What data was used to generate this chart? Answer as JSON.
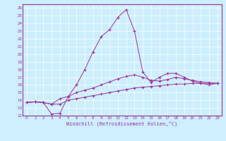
{
  "xlabel": "Windchill (Refroidissement éolien,°C)",
  "bg_color": "#cceeff",
  "line_color": "#993399",
  "xlim": [
    -0.5,
    23.5
  ],
  "ylim": [
    12,
    26.5
  ],
  "xticks": [
    0,
    1,
    2,
    3,
    4,
    5,
    6,
    7,
    8,
    9,
    10,
    11,
    12,
    13,
    14,
    15,
    16,
    17,
    18,
    19,
    20,
    21,
    22,
    23
  ],
  "yticks": [
    12,
    13,
    14,
    15,
    16,
    17,
    18,
    19,
    20,
    21,
    22,
    23,
    24,
    25,
    26
  ],
  "line1_x": [
    0,
    1,
    2,
    3,
    4,
    5,
    6,
    7,
    8,
    9,
    10,
    11,
    12,
    13,
    14,
    15,
    16,
    17,
    18,
    19,
    20,
    21,
    22,
    23
  ],
  "line1_y": [
    13.7,
    13.8,
    13.7,
    13.5,
    13.5,
    14.0,
    14.2,
    14.4,
    14.6,
    14.8,
    15.0,
    15.2,
    15.4,
    15.6,
    15.7,
    15.8,
    15.9,
    16.0,
    16.1,
    16.1,
    16.2,
    16.2,
    16.2,
    16.2
  ],
  "line2_x": [
    0,
    1,
    2,
    3,
    4,
    5,
    6,
    7,
    8,
    9,
    10,
    11,
    12,
    13,
    14,
    15,
    16,
    17,
    18,
    19,
    20,
    21,
    22,
    23
  ],
  "line2_y": [
    13.7,
    13.8,
    13.7,
    13.5,
    14.2,
    14.5,
    15.0,
    15.3,
    15.6,
    16.0,
    16.4,
    16.8,
    17.1,
    17.3,
    17.0,
    16.6,
    16.5,
    16.7,
    17.0,
    16.8,
    16.6,
    16.4,
    16.3,
    16.2
  ],
  "line3_x": [
    0,
    1,
    2,
    3,
    4,
    5,
    6,
    7,
    8,
    9,
    10,
    11,
    12,
    13,
    14,
    15,
    16,
    17,
    18,
    19,
    20,
    21,
    22,
    23
  ],
  "line3_y": [
    13.7,
    13.8,
    13.7,
    12.2,
    12.3,
    14.5,
    16.0,
    18.0,
    20.3,
    22.3,
    23.2,
    24.8,
    25.8,
    23.0,
    17.7,
    16.3,
    17.0,
    17.5,
    17.5,
    17.0,
    16.5,
    16.2,
    16.0,
    16.2
  ]
}
